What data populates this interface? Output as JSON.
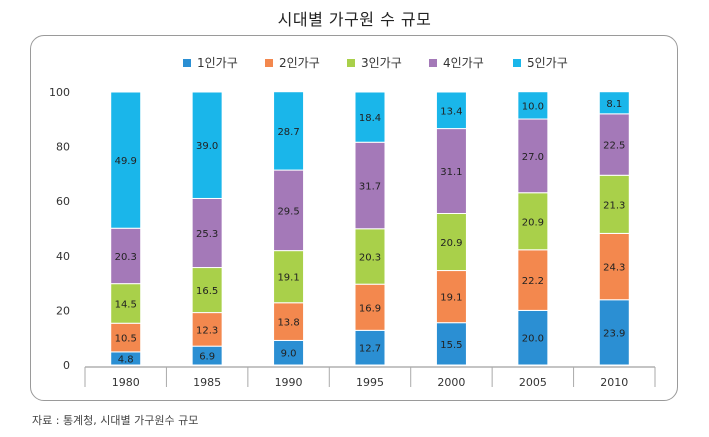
{
  "title": "시대별 가구원 수 규모",
  "source": "자료 : 통계청, 시대별 가구원수 규모",
  "chart_data": {
    "type": "bar",
    "stacked": true,
    "title": "시대별 가구원 수 규모",
    "xlabel": "",
    "ylabel": "",
    "ylim": [
      0,
      100
    ],
    "yticks": [
      0,
      20,
      40,
      60,
      80,
      100
    ],
    "grid": false,
    "legend": "top",
    "categories": [
      "1980",
      "1985",
      "1990",
      "1995",
      "2000",
      "2005",
      "2010"
    ],
    "series": [
      {
        "name": "1인가구",
        "color": "#2b8fd3",
        "values": [
          4.8,
          6.9,
          9.0,
          12.7,
          15.5,
          20.0,
          23.9
        ],
        "labels": [
          "4.8",
          "6.9",
          "9.0",
          "12.7",
          "15.5",
          "20.0",
          "23.9"
        ]
      },
      {
        "name": "2인가구",
        "color": "#f3884e",
        "values": [
          10.5,
          12.3,
          13.8,
          16.9,
          19.1,
          22.2,
          24.3
        ],
        "labels": [
          "10.5",
          "12.3",
          "13.8",
          "16.9",
          "19.1",
          "22.2",
          "24.3"
        ]
      },
      {
        "name": "3인가구",
        "color": "#a9d04a",
        "values": [
          14.5,
          16.5,
          19.1,
          20.3,
          20.9,
          20.9,
          21.3
        ],
        "labels": [
          "14.5",
          "16.5",
          "19.1",
          "20.3",
          "20.9",
          "20.9",
          "21.3"
        ]
      },
      {
        "name": "4인가구",
        "color": "#a479b8",
        "values": [
          20.3,
          25.3,
          29.5,
          31.7,
          31.1,
          27.0,
          22.5
        ],
        "labels": [
          "20.3",
          "25.3",
          "29.5",
          "31.7",
          "31.1",
          "27.0",
          "22.5"
        ]
      },
      {
        "name": "5인가구",
        "color": "#1ab6ea",
        "values": [
          49.9,
          39.0,
          28.7,
          18.4,
          13.4,
          10.0,
          8.1
        ],
        "labels": [
          "49.9",
          "39.0",
          "28.7",
          "18.4",
          "13.4",
          "10.0",
          "8.1"
        ]
      }
    ]
  }
}
